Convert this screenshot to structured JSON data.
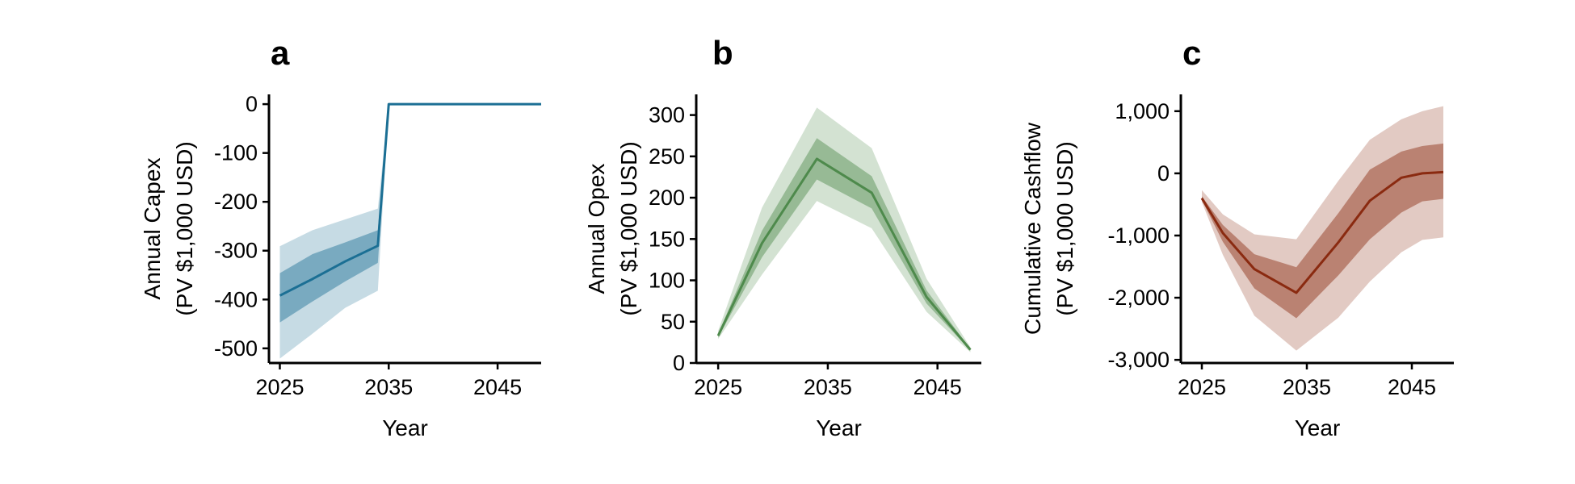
{
  "chart_data": [
    {
      "panel": "a",
      "type": "line",
      "title": "",
      "xlabel": "Year",
      "ylabel": [
        "Annual Capex",
        "(PV $1,000 USD)"
      ],
      "xlim": [
        2024,
        2049
      ],
      "ylim": [
        -530,
        20
      ],
      "xticks": [
        2025,
        2035,
        2045
      ],
      "xtick_labels": [
        "2025",
        "2035",
        "2045"
      ],
      "yticks": [
        0,
        -100,
        -200,
        -300,
        -400,
        -500
      ],
      "ytick_labels": [
        "0",
        "-100",
        "-200",
        "-300",
        "-400",
        "-500"
      ],
      "grid": false,
      "color": "#1b6f94",
      "band_color": "#1b6f94",
      "x": [
        2025,
        2028,
        2031,
        2034,
        2035,
        2040,
        2045,
        2049
      ],
      "median": [
        -392,
        -358,
        -322,
        -290,
        0,
        0,
        0,
        0
      ],
      "inner_lower": [
        -447,
        -404,
        -363,
        -325,
        0,
        0,
        0,
        0
      ],
      "inner_upper": [
        -346,
        -307,
        -283,
        -258,
        0,
        0,
        0,
        0
      ],
      "outer_lower": [
        -521,
        -470,
        -417,
        -382,
        0,
        0,
        0,
        0
      ],
      "outer_upper": [
        -291,
        -258,
        -236,
        -214,
        0,
        0,
        0,
        0
      ]
    },
    {
      "panel": "b",
      "type": "line",
      "title": "",
      "xlabel": "Year",
      "ylabel": [
        "Annual Opex",
        "(PV $1,000 USD)"
      ],
      "xlim": [
        2023,
        2049
      ],
      "ylim": [
        0,
        325
      ],
      "xticks": [
        2025,
        2035,
        2045
      ],
      "xtick_labels": [
        "2025",
        "2035",
        "2045"
      ],
      "yticks": [
        0,
        50,
        100,
        150,
        200,
        250,
        300
      ],
      "ytick_labels": [
        "0",
        "50",
        "100",
        "150",
        "200",
        "250",
        "300"
      ],
      "grid": false,
      "color": "#4e8a4c",
      "band_color": "#4e8a4c",
      "x": [
        2025,
        2029,
        2034,
        2039,
        2044,
        2048
      ],
      "median": [
        33,
        145,
        247,
        206,
        80,
        16
      ],
      "inner_lower": [
        31,
        128,
        222,
        187,
        72,
        15
      ],
      "inner_upper": [
        35,
        160,
        272,
        226,
        88,
        17
      ],
      "outer_lower": [
        29,
        107,
        196,
        163,
        62,
        13
      ],
      "outer_upper": [
        39,
        188,
        309,
        260,
        102,
        19
      ]
    },
    {
      "panel": "c",
      "type": "line",
      "title": "",
      "xlabel": "Year",
      "ylabel": [
        "Cumulative Cashflow",
        "(PV $1,000 USD)"
      ],
      "xlim": [
        2023,
        2049
      ],
      "ylim": [
        -3050,
        1270
      ],
      "xticks": [
        2025,
        2035,
        2045
      ],
      "xtick_labels": [
        "2025",
        "2035",
        "2045"
      ],
      "yticks": [
        1000,
        0,
        -1000,
        -2000,
        -3000
      ],
      "ytick_labels": [
        "1,000",
        "0",
        "-1,000",
        "-2,000",
        "-3,000"
      ],
      "grid": false,
      "color": "#8a2a10",
      "band_color": "#8a2a10",
      "x": [
        2025,
        2027,
        2030,
        2034,
        2038,
        2041,
        2044,
        2046,
        2048
      ],
      "median": [
        -400,
        -960,
        -1540,
        -1920,
        -1110,
        -440,
        -70,
        0,
        20
      ],
      "inner_lower": [
        -430,
        -1100,
        -1850,
        -2330,
        -1640,
        -1060,
        -630,
        -450,
        -410
      ],
      "inner_upper": [
        -370,
        -830,
        -1300,
        -1510,
        -640,
        60,
        350,
        440,
        480
      ],
      "outer_lower": [
        -460,
        -1310,
        -2290,
        -2850,
        -2320,
        -1740,
        -1270,
        -1070,
        -1030
      ],
      "outer_upper": [
        -270,
        -660,
        -980,
        -1060,
        -120,
        540,
        870,
        1000,
        1080
      ]
    }
  ]
}
